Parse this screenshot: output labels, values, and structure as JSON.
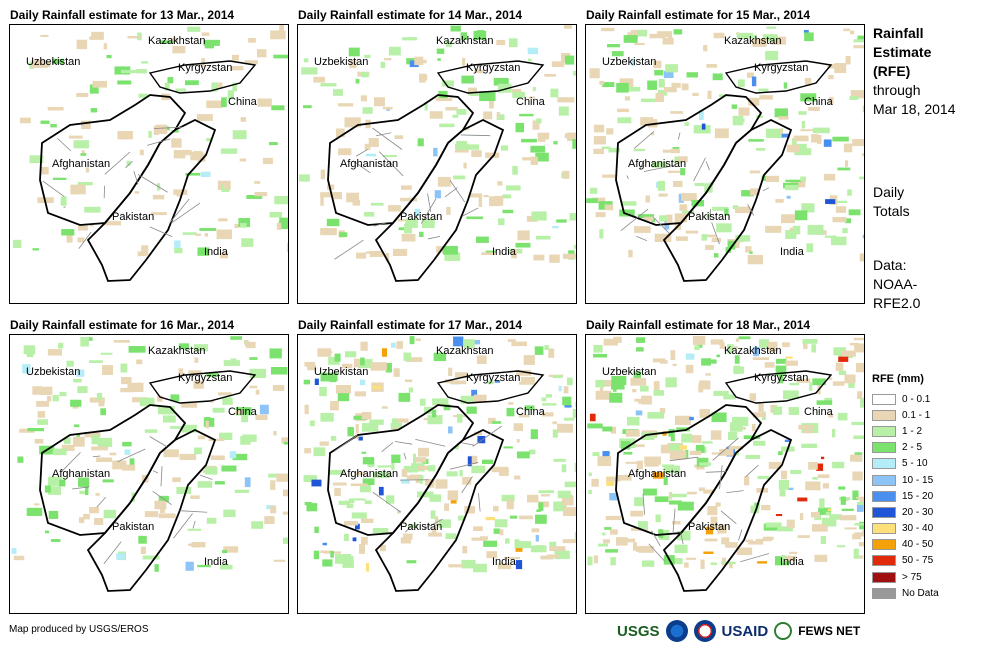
{
  "panels": [
    {
      "title": "Daily Rainfall estimate for 13 Mar., 2014",
      "intensity": 1
    },
    {
      "title": "Daily Rainfall estimate for 14 Mar., 2014",
      "intensity": 2
    },
    {
      "title": "Daily Rainfall estimate for 15 Mar., 2014",
      "intensity": 3
    },
    {
      "title": "Daily Rainfall estimate for 16 Mar., 2014",
      "intensity": 2
    },
    {
      "title": "Daily Rainfall estimate for 17 Mar., 2014",
      "intensity": 4
    },
    {
      "title": "Daily Rainfall estimate for 18 Mar., 2014",
      "intensity": 5
    }
  ],
  "map_labels": {
    "kazakhstan": "Kazakhstan",
    "uzbekistan": "Uzbekistan",
    "kyrgyzstan": "Kyrgyzstan",
    "china": "China",
    "afghanistan": "Afghanistan",
    "pakistan": "Pakistan",
    "india": "India"
  },
  "side_info": {
    "title_lines": [
      "Rainfall",
      "Estimate",
      "(RFE)"
    ],
    "through": "through",
    "date": "Mar 18, 2014",
    "daily": "Daily",
    "totals": "Totals",
    "data_label": "Data:",
    "data_source_1": "NOAA-",
    "data_source_2": "RFE2.0"
  },
  "legend": {
    "title": "RFE (mm)",
    "items": [
      {
        "label": "0 - 0.1",
        "color": "#ffffff"
      },
      {
        "label": "0.1 - 1",
        "color": "#e8d6b4"
      },
      {
        "label": "1 - 2",
        "color": "#b8f0a8"
      },
      {
        "label": "2 - 5",
        "color": "#7be26e"
      },
      {
        "label": "5 - 10",
        "color": "#b4ecf7"
      },
      {
        "label": "10 - 15",
        "color": "#8cc4f7"
      },
      {
        "label": "15 - 20",
        "color": "#4a8ff0"
      },
      {
        "label": "20 - 30",
        "color": "#1f55d6"
      },
      {
        "label": "30 - 40",
        "color": "#fde07a"
      },
      {
        "label": "40 - 50",
        "color": "#f5a10a"
      },
      {
        "label": "50 - 75",
        "color": "#e02a0a"
      },
      {
        "label": "> 75",
        "color": "#a01010"
      },
      {
        "label": "No Data",
        "color": "#999999"
      }
    ]
  },
  "footer": {
    "credit": "Map produced by USGS/EROS",
    "logo_usgs": "USGS",
    "logo_usaid": "USAID",
    "logo_fews": "FEWS NET"
  }
}
